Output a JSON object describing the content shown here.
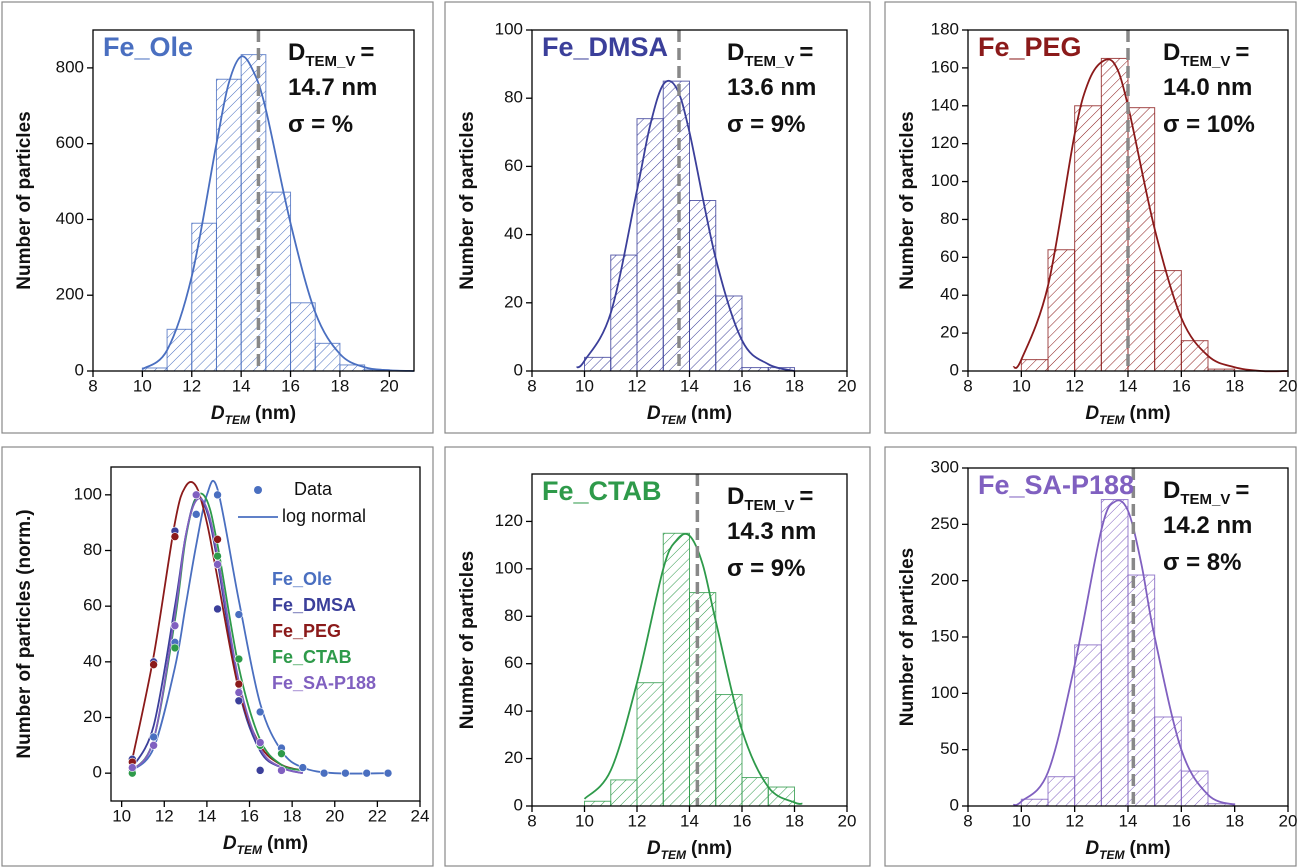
{
  "chart_data": [
    {
      "type": "histogram",
      "title": "Fe_Ole",
      "color": "#4a6fc0",
      "bins": [
        10,
        11,
        12,
        13,
        14,
        15,
        16,
        17,
        18,
        19,
        20
      ],
      "counts": [
        8,
        110,
        390,
        770,
        835,
        472,
        180,
        73,
        16,
        3
      ],
      "fit": {
        "x": [
          10,
          11,
          12,
          13,
          13.5,
          14,
          14.5,
          15,
          16,
          17,
          18,
          19,
          20,
          21
        ],
        "values": [
          5,
          55,
          250,
          600,
          760,
          830,
          790,
          690,
          390,
          155,
          45,
          10,
          2,
          0
        ]
      },
      "reference_line": 14.7,
      "annotation": {
        "symbol": "D",
        "subscript": "TEM_V",
        "equals": "=",
        "value": "14.7 nm",
        "sigma": "σ =  %"
      },
      "xlim": [
        8,
        21
      ],
      "xticks": [
        8,
        10,
        12,
        14,
        16,
        18,
        20
      ],
      "ylim": [
        0,
        900
      ],
      "yticks": [
        0,
        200,
        400,
        600,
        800
      ],
      "xlabel": {
        "symbol": "D",
        "subscript": "TEM",
        "unit": "(nm)"
      },
      "ylabel": "Number of particles"
    },
    {
      "type": "histogram",
      "title": "Fe_DMSA",
      "color": "#3b3f9a",
      "bins": [
        10,
        11,
        12,
        13,
        14,
        15,
        16,
        17,
        18
      ],
      "counts": [
        4,
        34,
        74,
        85,
        50,
        22,
        1,
        1
      ],
      "fit": {
        "x": [
          9.7,
          10,
          11,
          12,
          12.5,
          13,
          13.5,
          14,
          15,
          16,
          17,
          18
        ],
        "values": [
          1,
          3,
          17,
          53,
          72,
          84,
          83,
          70,
          33,
          9,
          2,
          0
        ]
      },
      "reference_line": 13.6,
      "annotation": {
        "symbol": "D",
        "subscript": "TEM_V",
        "equals": "=",
        "value": "13.6 nm",
        "sigma": "σ = 9%"
      },
      "xlim": [
        8,
        20
      ],
      "xticks": [
        8,
        10,
        12,
        14,
        16,
        18,
        20
      ],
      "ylim": [
        0,
        100
      ],
      "yticks": [
        0,
        20,
        40,
        60,
        80,
        100
      ],
      "xlabel": {
        "symbol": "D",
        "subscript": "TEM",
        "unit": "(nm)"
      },
      "ylabel": "Number of particles"
    },
    {
      "type": "histogram",
      "title": "Fe_PEG",
      "color": "#8b1a1a",
      "bins": [
        10,
        11,
        12,
        13,
        14,
        15,
        16,
        17,
        18
      ],
      "counts": [
        6,
        64,
        140,
        165,
        139,
        53,
        16,
        1
      ],
      "fit": {
        "x": [
          9.7,
          10,
          11,
          12,
          12.5,
          13,
          13.5,
          14,
          15,
          16,
          17,
          18,
          19,
          20
        ],
        "values": [
          2,
          6,
          45,
          125,
          152,
          163,
          162,
          140,
          75,
          28,
          8,
          2,
          0,
          0
        ]
      },
      "reference_line": 14.0,
      "annotation": {
        "symbol": "D",
        "subscript": "TEM_V",
        "equals": "=",
        "value": "14.0 nm",
        "sigma": "σ = 10%"
      },
      "xlim": [
        8,
        20
      ],
      "xticks": [
        8,
        10,
        12,
        14,
        16,
        18,
        20
      ],
      "ylim": [
        0,
        180
      ],
      "yticks": [
        0,
        20,
        40,
        60,
        80,
        100,
        120,
        140,
        160,
        180
      ],
      "xlabel": {
        "symbol": "D",
        "subscript": "TEM",
        "unit": "(nm)"
      },
      "ylabel": "Number of particles"
    },
    {
      "type": "scatter",
      "legend": {
        "data": "Data",
        "fit": "log normal"
      },
      "series": [
        {
          "name": "Fe_Ole",
          "color": "#4a6fc0",
          "x": [
            10.5,
            11.5,
            12.5,
            13.5,
            14.5,
            15.5,
            16.5,
            17.5,
            18.5,
            19.5,
            20.5,
            21.5,
            22.5
          ],
          "values": [
            1,
            13,
            47,
            93,
            100,
            57,
            22,
            9,
            2,
            0,
            0,
            0,
            0
          ],
          "fit_x": [
            10.5,
            11.5,
            12.5,
            13,
            13.5,
            14,
            14.5,
            15.5,
            16.5,
            17.5,
            18.5,
            20,
            22.5
          ],
          "fit_values": [
            1,
            9,
            38,
            60,
            82,
            100,
            102,
            62,
            25,
            8,
            2,
            0,
            0
          ]
        },
        {
          "name": "Fe_DMSA",
          "color": "#3b3f9a",
          "x": [
            10.5,
            11.5,
            12.5,
            13.5,
            14.5,
            15.5,
            16.5,
            17.5
          ],
          "values": [
            5,
            40,
            87,
            100,
            59,
            26,
            1,
            1
          ],
          "fit_x": [
            10.5,
            11.5,
            12.5,
            13,
            13.5,
            14,
            14.5,
            15.5,
            16.5,
            17.5,
            18.5
          ],
          "fit_values": [
            2,
            17,
            60,
            85,
            99,
            94,
            76,
            30,
            8,
            2,
            0
          ]
        },
        {
          "name": "Fe_PEG",
          "color": "#8b1a1a",
          "x": [
            10.5,
            11.5,
            12.5,
            13.5,
            14.5,
            15.5,
            16.5,
            17.5
          ],
          "values": [
            4,
            39,
            85,
            100,
            84,
            32,
            10,
            1
          ],
          "fit_x": [
            10.5,
            11.5,
            12.5,
            13,
            13.5,
            14,
            14.5,
            15.5,
            16.5,
            17.5,
            18.5
          ],
          "fit_values": [
            5,
            42,
            90,
            103,
            103,
            90,
            70,
            30,
            10,
            3,
            1
          ]
        },
        {
          "name": "Fe_CTAB",
          "color": "#2e9a4a",
          "x": [
            10.5,
            11.5,
            12.5,
            13.5,
            14.5,
            15.5,
            16.5,
            17.5
          ],
          "values": [
            0,
            10,
            45,
            100,
            78,
            41,
            10,
            7
          ],
          "fit_x": [
            10.5,
            11.5,
            12.5,
            13,
            13.5,
            14,
            14.5,
            15.5,
            16.5,
            17.5,
            18.5
          ],
          "fit_values": [
            1,
            12,
            55,
            84,
            99,
            98,
            82,
            38,
            12,
            3,
            1
          ]
        },
        {
          "name": "Fe_SA-P188",
          "color": "#8060c0",
          "x": [
            10.5,
            11.5,
            12.5,
            13.5,
            14.5,
            15.5,
            16.5,
            17.5
          ],
          "values": [
            2,
            10,
            53,
            100,
            75,
            29,
            11,
            1
          ],
          "fit_x": [
            10.5,
            11.5,
            12.5,
            13,
            13.5,
            14,
            14.5,
            15.5,
            16.5,
            17.5,
            18.5
          ],
          "fit_values": [
            1,
            12,
            57,
            85,
            98,
            95,
            78,
            33,
            9,
            2,
            0
          ]
        }
      ],
      "xlim": [
        9.5,
        24
      ],
      "xticks": [
        10,
        12,
        14,
        16,
        18,
        20,
        22,
        24
      ],
      "ylim": [
        -10,
        110
      ],
      "yticks": [
        0,
        20,
        40,
        60,
        80,
        100
      ],
      "xlabel": {
        "symbol": "D",
        "subscript": "TEM",
        "unit": "(nm)"
      },
      "ylabel": "Number of particles (norm.)"
    },
    {
      "type": "histogram",
      "title": "Fe_CTAB",
      "color": "#2e9a4a",
      "bins": [
        10,
        11,
        12,
        13,
        14,
        15,
        16,
        17,
        18
      ],
      "counts": [
        2,
        11,
        52,
        115,
        90,
        47,
        12,
        8
      ],
      "fit": {
        "x": [
          10,
          11,
          12,
          13,
          13.5,
          14,
          14.5,
          15,
          16,
          17,
          18,
          18.3
        ],
        "values": [
          3,
          15,
          52,
          100,
          112,
          114,
          102,
          78,
          32,
          8,
          1.5,
          1
        ]
      },
      "reference_line": 14.3,
      "annotation": {
        "symbol": "D",
        "subscript": "TEM_V",
        "equals": "=",
        "value": "14.3 nm",
        "sigma": "σ = 9%"
      },
      "xlim": [
        8,
        20
      ],
      "xticks": [
        8,
        10,
        12,
        14,
        16,
        18,
        20
      ],
      "ylim": [
        0,
        140
      ],
      "yticks": [
        0,
        20,
        40,
        60,
        80,
        100,
        120
      ],
      "xlabel": {
        "symbol": "D",
        "subscript": "TEM",
        "unit": "(nm)"
      },
      "ylabel": "Number of particles"
    },
    {
      "type": "histogram",
      "title": "Fe_SA-P188",
      "color": "#8060c0",
      "bins": [
        10,
        11,
        12,
        13,
        14,
        15,
        16,
        17,
        18
      ],
      "counts": [
        6,
        26,
        143,
        272,
        205,
        79,
        31,
        2
      ],
      "fit": {
        "x": [
          9.7,
          10,
          11,
          12,
          13,
          13.5,
          14,
          14.5,
          15,
          16,
          17,
          18
        ],
        "values": [
          1,
          4,
          30,
          125,
          245,
          270,
          262,
          215,
          150,
          50,
          10,
          1
        ]
      },
      "reference_line": 14.2,
      "annotation": {
        "symbol": "D",
        "subscript": "TEM_V",
        "equals": "=",
        "value": "14.2 nm",
        "sigma": "σ = 8%"
      },
      "xlim": [
        8,
        20
      ],
      "xticks": [
        8,
        10,
        12,
        14,
        16,
        18,
        20
      ],
      "ylim": [
        0,
        300
      ],
      "yticks": [
        0,
        50,
        100,
        150,
        200,
        250,
        300
      ],
      "xlabel": {
        "symbol": "D",
        "subscript": "TEM",
        "unit": "(nm)"
      },
      "ylabel": "Number of particles"
    }
  ]
}
